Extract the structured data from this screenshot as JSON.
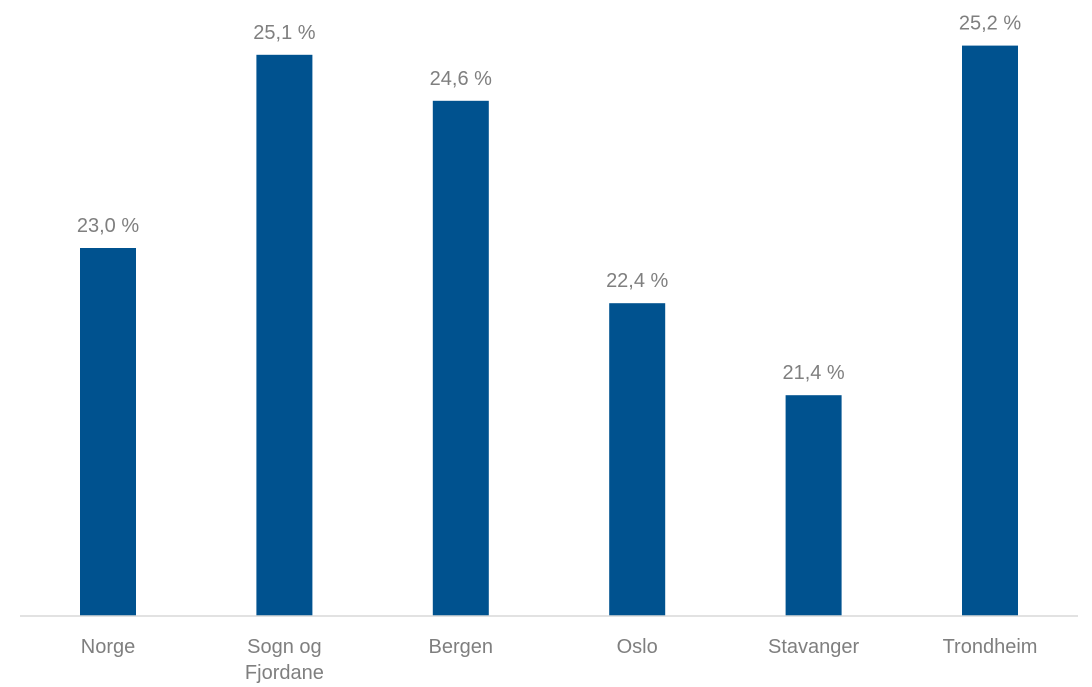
{
  "chart_data": {
    "type": "bar",
    "title": "",
    "xlabel": "",
    "ylabel": "",
    "categories": [
      [
        "Norge"
      ],
      [
        "Sogn og",
        "Fjordane"
      ],
      [
        "Bergen"
      ],
      [
        "Oslo"
      ],
      [
        "Stavanger"
      ],
      [
        "Trondheim"
      ]
    ],
    "values": [
      23.0,
      25.1,
      24.6,
      22.4,
      21.4,
      25.2
    ],
    "data_labels": [
      "23,0 %",
      "25,1 %",
      "24,6 %",
      "22,4 %",
      "21,4 %",
      "25,2 %"
    ],
    "ylim": [
      19.0,
      25.5
    ],
    "grid": false,
    "legend": "none",
    "colors": {
      "bar": "#00528f",
      "label_text": "#7f7f7f",
      "axis": "#d9d9d9"
    }
  }
}
